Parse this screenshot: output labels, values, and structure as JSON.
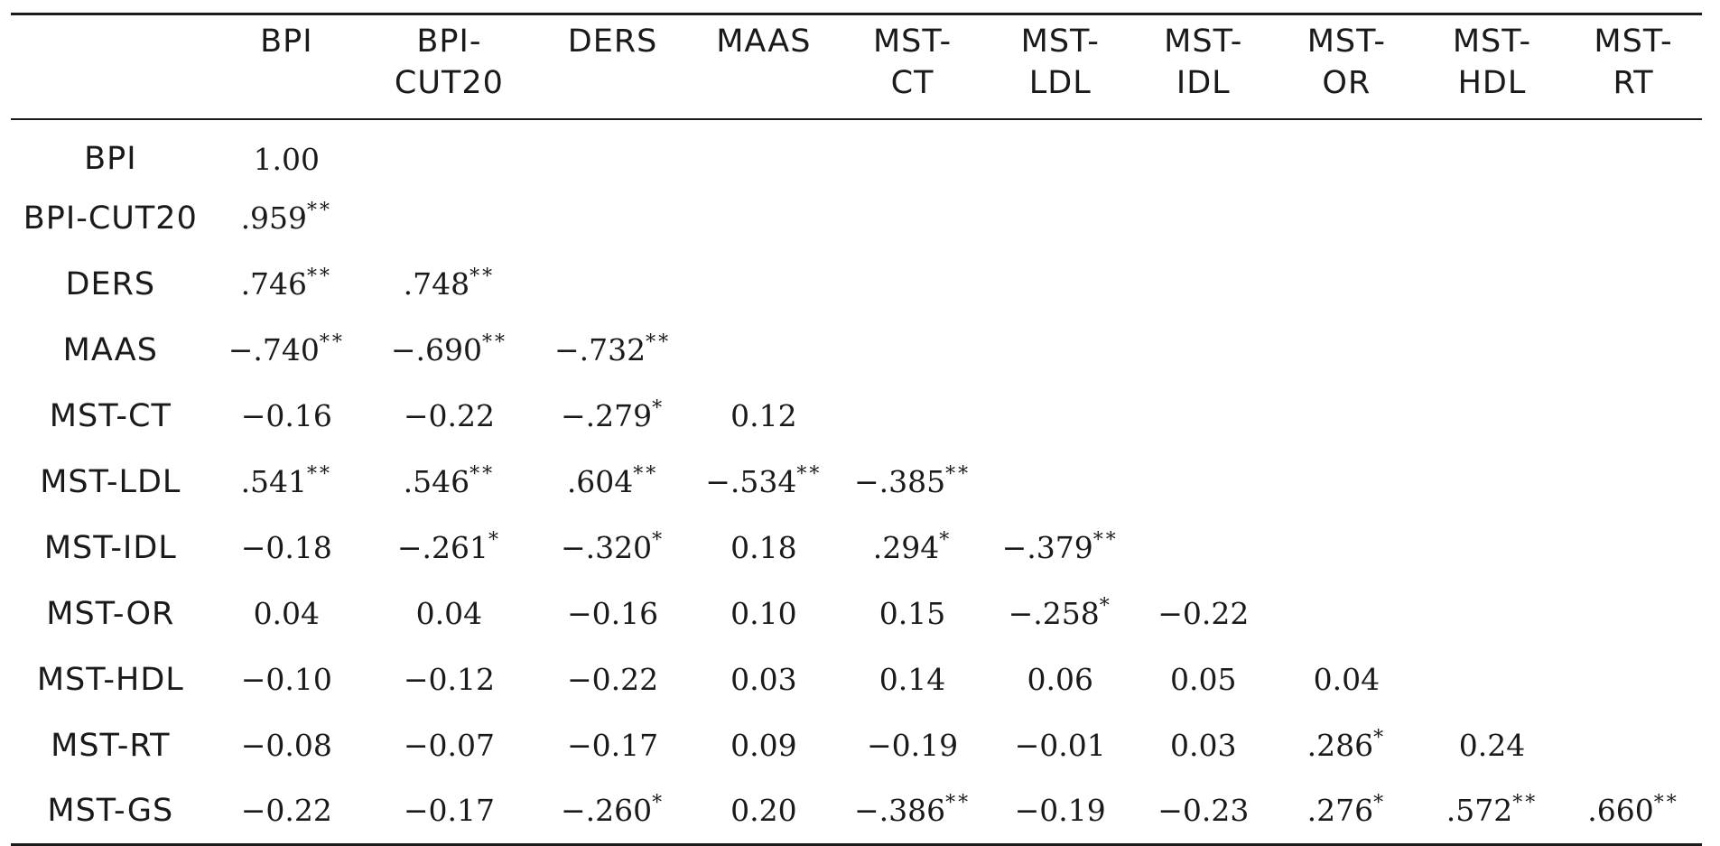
{
  "table": {
    "columns": [
      "",
      "BPI",
      "BPI-\nCUT20",
      "DERS",
      "MAAS",
      "MST-\nCT",
      "MST-\nLDL",
      "MST-\nIDL",
      "MST-\nOR",
      "MST-\nHDL",
      "MST-\nRT"
    ],
    "rows": [
      {
        "label": "BPI",
        "values": [
          "1.00"
        ]
      },
      {
        "label": "BPI-CUT20",
        "values": [
          ".959**"
        ]
      },
      {
        "label": "DERS",
        "values": [
          ".746**",
          ".748**"
        ]
      },
      {
        "label": "MAAS",
        "values": [
          "−.740**",
          "−.690**",
          "−.732**"
        ]
      },
      {
        "label": "MST-CT",
        "values": [
          "−0.16",
          "−0.22",
          "−.279*",
          "0.12"
        ]
      },
      {
        "label": "MST-LDL",
        "values": [
          ".541**",
          ".546**",
          ".604**",
          "−.534**",
          "−.385**"
        ]
      },
      {
        "label": "MST-IDL",
        "values": [
          "−0.18",
          "−.261*",
          "−.320*",
          "0.18",
          ".294*",
          "−.379**"
        ]
      },
      {
        "label": "MST-OR",
        "values": [
          "0.04",
          "0.04",
          "−0.16",
          "0.10",
          "0.15",
          "−.258*",
          "−0.22"
        ]
      },
      {
        "label": "MST-HDL",
        "values": [
          "−0.10",
          "−0.12",
          "−0.22",
          "0.03",
          "0.14",
          "0.06",
          "0.05",
          "0.04"
        ]
      },
      {
        "label": "MST-RT",
        "values": [
          "−0.08",
          "−0.07",
          "−0.17",
          "0.09",
          "−0.19",
          "−0.01",
          "0.03",
          ".286*",
          "0.24"
        ]
      },
      {
        "label": "MST-GS",
        "values": [
          "−0.22",
          "−0.17",
          "−.260*",
          "0.20",
          "−.386**",
          "−0.19",
          "−0.23",
          ".276*",
          ".572**",
          ".660**"
        ]
      }
    ]
  }
}
